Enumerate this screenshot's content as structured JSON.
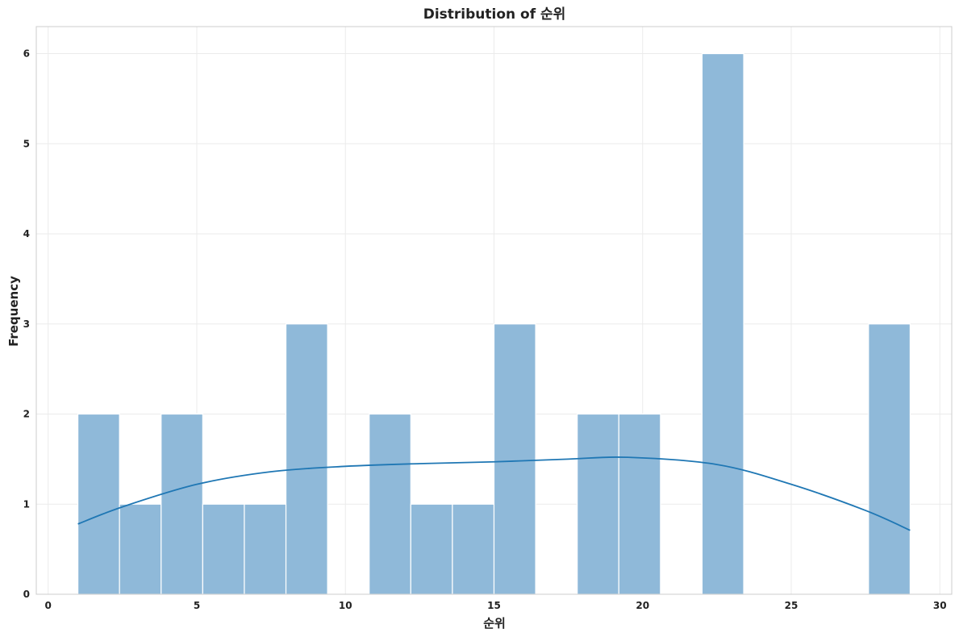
{
  "chart_data": {
    "type": "bar",
    "title": "Distribution of 순위",
    "xlabel": "순위",
    "ylabel": "Frequency",
    "xlim": [
      -0.4,
      30.4
    ],
    "ylim": [
      0,
      6.3
    ],
    "xticks": [
      0,
      5,
      10,
      15,
      20,
      25,
      30
    ],
    "yticks": [
      0,
      1,
      2,
      3,
      4,
      5,
      6
    ],
    "grid": true,
    "bin_start": 1,
    "bin_width": 1.4,
    "counts": [
      2,
      1,
      2,
      1,
      1,
      3,
      0,
      2,
      1,
      1,
      3,
      0,
      2,
      2,
      0,
      6,
      0,
      0,
      0,
      3
    ],
    "kde": {
      "x": [
        1,
        2.5,
        5,
        7.5,
        10,
        12.5,
        15,
        17.5,
        19.5,
        22.5,
        25,
        27.5,
        29
      ],
      "y": [
        0.78,
        0.97,
        1.22,
        1.36,
        1.42,
        1.45,
        1.47,
        1.5,
        1.52,
        1.44,
        1.22,
        0.93,
        0.71
      ]
    },
    "colors": {
      "bar": "#8fb9d9",
      "bar_edge": "#ffffff",
      "line": "#1f77b4",
      "grid": "#ebebeb",
      "frame": "#cccccc"
    }
  }
}
